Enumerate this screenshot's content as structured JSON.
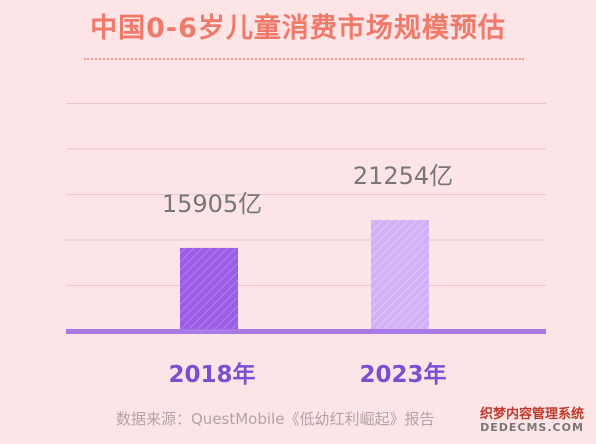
{
  "title": "中国0-6岁儿童消费市场规模预估",
  "source": "数据来源：QuestMobile《低幼红利崛起》报告",
  "watermark": {
    "cn": "织梦内容管理系统",
    "en": "DEDECMS.COM"
  },
  "colors": {
    "background": "#fde4e6",
    "title": "#f07a6a",
    "axis": "#a67be6",
    "bar_2018": "#9b5ce8",
    "bar_2023": "#d4b0f6",
    "category_label": "#7c4fd0",
    "value_label": "#777777"
  },
  "chart_data": {
    "type": "bar",
    "categories": [
      "2018年",
      "2023年"
    ],
    "values": [
      15905,
      21254
    ],
    "value_labels": [
      "15905亿",
      "21254亿"
    ],
    "unit": "亿",
    "ylim": [
      0,
      42500
    ],
    "grid": true,
    "legend": "none"
  }
}
